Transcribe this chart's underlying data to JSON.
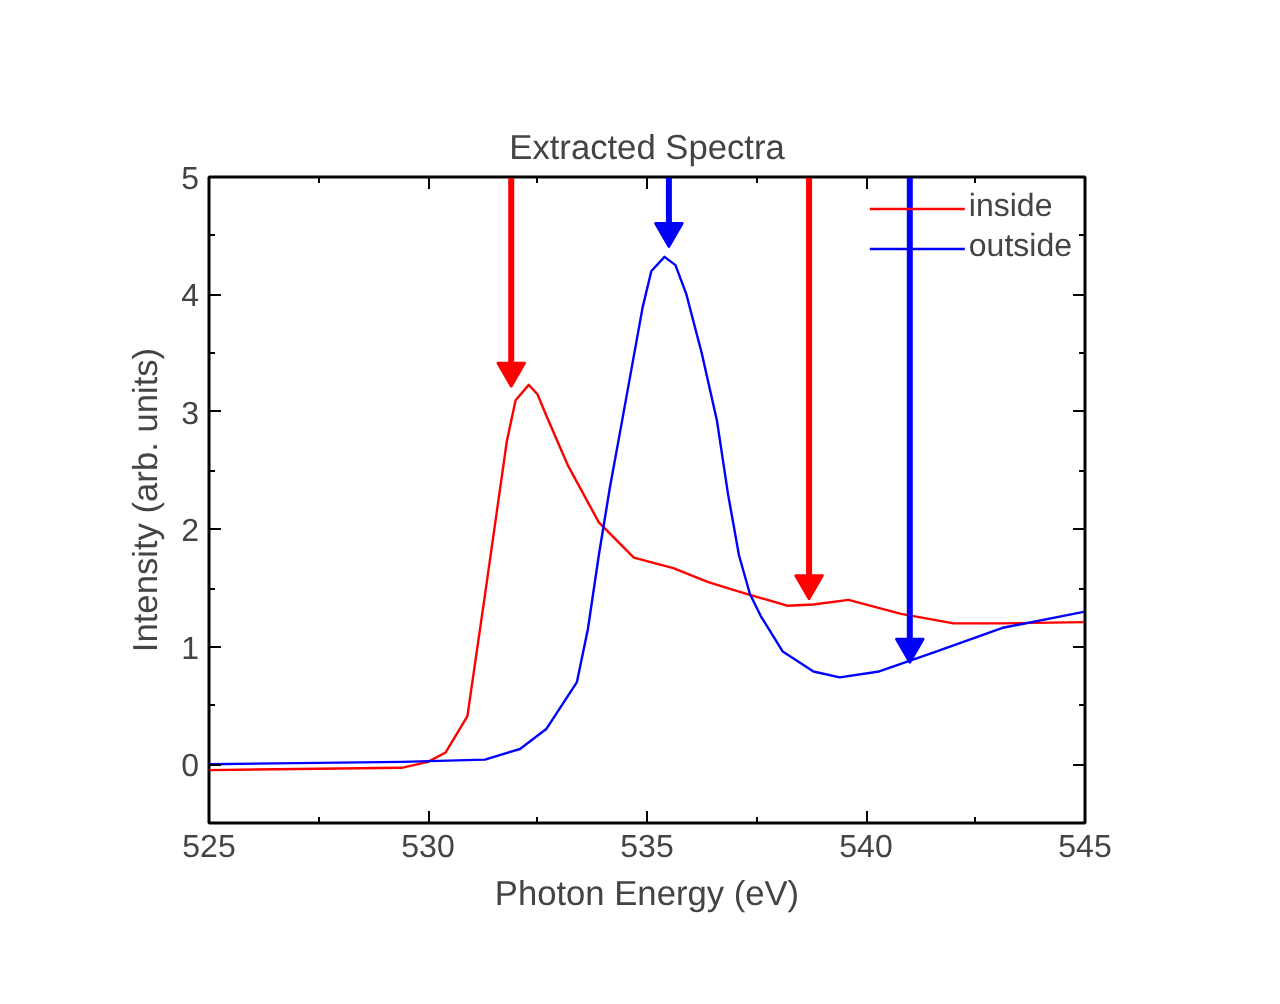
{
  "chart_data": {
    "type": "line",
    "title": "Extracted Spectra",
    "xlabel": "Photon Energy (eV)",
    "ylabel": "Intensity (arb. units)",
    "xlim": [
      525,
      545
    ],
    "ylim": [
      -0.5,
      5
    ],
    "xticks": [
      525,
      530,
      535,
      540,
      545
    ],
    "yticks": [
      0,
      1,
      2,
      3,
      4,
      5
    ],
    "grid": false,
    "legend": "top right",
    "marker": "none",
    "line_style": "solid",
    "series": [
      {
        "name": "inside",
        "color": "#ff0000",
        "x": [
          525,
          527,
          529.4,
          530.0,
          530.4,
          530.9,
          531.3,
          531.8,
          532.0,
          532.3,
          532.5,
          532.7,
          533.2,
          533.9,
          534.7,
          535.6,
          536.4,
          537.1,
          538.2,
          538.8,
          539.6,
          540.8,
          542.0,
          543.1,
          545
        ],
        "values": [
          -0.05,
          -0.04,
          -0.03,
          0.02,
          0.1,
          0.41,
          1.44,
          2.75,
          3.1,
          3.23,
          3.15,
          2.97,
          2.54,
          2.06,
          1.76,
          1.67,
          1.55,
          1.47,
          1.35,
          1.36,
          1.4,
          1.28,
          1.2,
          1.2,
          1.21
        ]
      },
      {
        "name": "outside",
        "color": "#0000ff",
        "x": [
          525,
          527,
          529.4,
          531.3,
          532.1,
          532.7,
          533.4,
          533.65,
          533.9,
          534.15,
          534.4,
          534.9,
          535.1,
          535.4,
          535.65,
          535.9,
          536.25,
          536.6,
          536.85,
          537.1,
          537.35,
          537.6,
          538.1,
          538.8,
          539.4,
          540.3,
          541.6,
          543.1,
          545
        ],
        "values": [
          0.0,
          0.01,
          0.02,
          0.04,
          0.13,
          0.3,
          0.7,
          1.15,
          1.78,
          2.35,
          2.86,
          3.89,
          4.2,
          4.32,
          4.25,
          4.0,
          3.5,
          2.92,
          2.3,
          1.78,
          1.45,
          1.26,
          0.96,
          0.79,
          0.74,
          0.79,
          0.96,
          1.16,
          1.3
        ]
      },
      {
        "type": "scatter",
        "marker": "triangle",
        "colors": [
          "#ff0000",
          "#0000ff",
          "#ff0000",
          "#0000ff"
        ],
        "x": [
          531.9,
          535.5,
          538.7,
          541.0
        ],
        "values": [
          3.35,
          4.54,
          1.54,
          1.0
        ]
      }
    ],
    "ref_lines": [
      {
        "axis": "x",
        "value": 531.9,
        "color": "#ff0000"
      },
      {
        "axis": "x",
        "value": 535.5,
        "color": "#0000ff"
      },
      {
        "axis": "x",
        "value": 538.7,
        "color": "#ff0000"
      },
      {
        "axis": "x",
        "value": 541.0,
        "color": "#0000ff"
      }
    ]
  }
}
